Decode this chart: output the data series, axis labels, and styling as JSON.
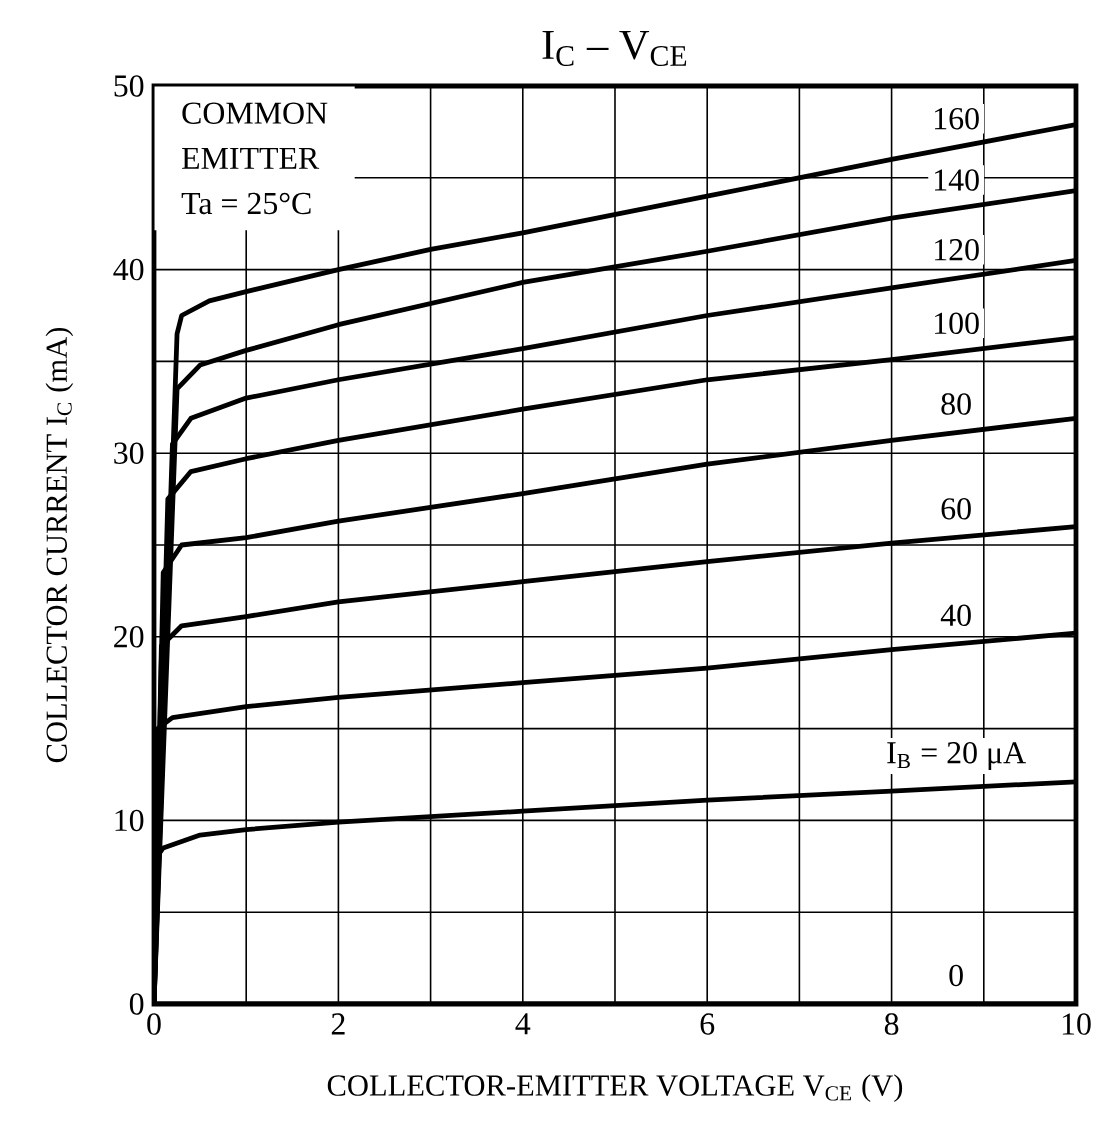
{
  "chart_data": {
    "type": "line",
    "title": "I$_{C}$ – V$_{CE}$",
    "xlabel": "COLLECTOR-EMITTER VOLTAGE  V$_{CE}$  (V)",
    "ylabel": "COLLECTOR CURRENT  I$_{C}$  (mA)",
    "annotations": [
      "COMMON",
      "EMITTER",
      "Ta = 25°C"
    ],
    "xlim": [
      0,
      10
    ],
    "ylim": [
      0,
      50
    ],
    "xticks": [
      0,
      {
        "value": 1,
        "label": null
      },
      2,
      {
        "value": 3,
        "label": null
      },
      4,
      {
        "value": 5,
        "label": null
      },
      6,
      {
        "value": 7,
        "label": null
      },
      8,
      {
        "value": 9,
        "label": null
      },
      10
    ],
    "yticks": [
      0,
      {
        "value": 5,
        "label": null
      },
      10,
      {
        "value": 15,
        "label": null
      },
      20,
      {
        "value": 25,
        "label": null
      },
      30,
      {
        "value": 35,
        "label": null
      },
      40,
      {
        "value": 45,
        "label": null
      },
      50
    ],
    "grid": true,
    "legend": false,
    "marker": "none",
    "line_style": "solid",
    "series": [
      {
        "name": "0",
        "color": "#000000",
        "x": [
          0,
          10
        ],
        "values": [
          0,
          0
        ]
      },
      {
        "name": "I$_{B}$ = 20 μA",
        "color": "#000000",
        "x": [
          0,
          0.03,
          0.1,
          0.5,
          1,
          2,
          4,
          6,
          8,
          10
        ],
        "values": [
          0,
          8,
          8.5,
          9.2,
          9.5,
          9.9,
          10.5,
          11.1,
          11.6,
          12.1
        ]
      },
      {
        "name": "40",
        "color": "#000000",
        "x": [
          0,
          0.04,
          0.2,
          1,
          2,
          4,
          6,
          8,
          10
        ],
        "values": [
          0,
          15,
          15.6,
          16.2,
          16.7,
          17.5,
          18.3,
          19.3,
          20.2
        ]
      },
      {
        "name": "60",
        "color": "#000000",
        "x": [
          0,
          0.08,
          0.3,
          1,
          2,
          4,
          6,
          8,
          10
        ],
        "values": [
          0,
          19.5,
          20.6,
          21.1,
          21.9,
          23,
          24.1,
          25.1,
          26
        ]
      },
      {
        "name": "80",
        "color": "#000000",
        "x": [
          0,
          0.1,
          0.3,
          1,
          2,
          4,
          6,
          8,
          10
        ],
        "values": [
          0,
          23.5,
          25,
          25.4,
          26.3,
          27.8,
          29.4,
          30.7,
          31.9
        ]
      },
      {
        "name": "100",
        "color": "#000000",
        "x": [
          0,
          0.15,
          0.4,
          1,
          2,
          4,
          6,
          8,
          10
        ],
        "values": [
          0,
          27.5,
          29,
          29.7,
          30.7,
          32.4,
          34,
          35.1,
          36.3
        ]
      },
      {
        "name": "120",
        "color": "#000000",
        "x": [
          0,
          0.2,
          0.4,
          1,
          2,
          4,
          6,
          8,
          10
        ],
        "values": [
          0,
          30.5,
          31.9,
          33,
          34,
          35.7,
          37.5,
          39,
          40.5
        ]
      },
      {
        "name": "140",
        "color": "#000000",
        "x": [
          0,
          0.25,
          0.5,
          1,
          2,
          4,
          6,
          8,
          10
        ],
        "values": [
          0,
          33.5,
          34.8,
          35.6,
          37,
          39.3,
          41,
          42.8,
          44.3
        ]
      },
      {
        "name": "160",
        "color": "#000000",
        "x": [
          0,
          0.25,
          0.3,
          0.6,
          1,
          2,
          3,
          4,
          6,
          8,
          10
        ],
        "values": [
          0,
          36.5,
          37.5,
          38.3,
          38.8,
          40,
          41.1,
          42,
          44,
          46,
          47.9
        ]
      }
    ]
  }
}
